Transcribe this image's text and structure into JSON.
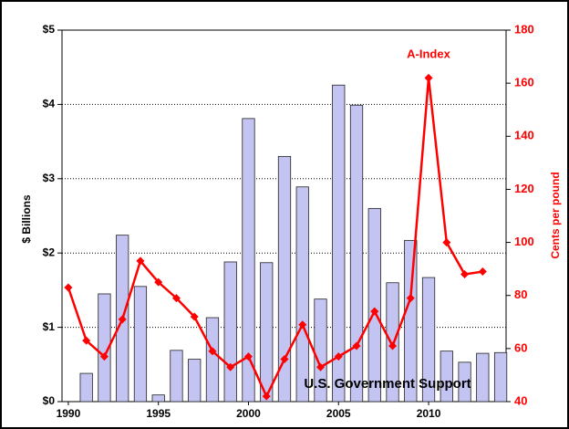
{
  "chart_data": {
    "type": "bar_line",
    "x": [
      1990,
      1991,
      1992,
      1993,
      1994,
      1995,
      1996,
      1997,
      1998,
      1999,
      2000,
      2001,
      2002,
      2003,
      2004,
      2005,
      2006,
      2007,
      2008,
      2009,
      2010,
      2011,
      2012,
      2013,
      2014
    ],
    "series": [
      {
        "name": "U.S. Government Support",
        "type": "bar",
        "color": "#c4c4f2",
        "values": [
          0,
          0.38,
          1.45,
          2.24,
          1.55,
          0.09,
          0.69,
          0.57,
          1.13,
          1.88,
          3.81,
          1.87,
          3.3,
          2.89,
          1.38,
          4.26,
          3.99,
          2.6,
          1.6,
          2.17,
          1.67,
          0.68,
          0.53,
          0.65,
          0.66
        ]
      },
      {
        "name": "A-Index",
        "type": "line",
        "axis": "y2",
        "color": "#ff0000",
        "values": [
          83,
          63,
          57,
          71,
          93,
          85,
          79,
          72,
          59,
          53,
          57,
          42,
          56,
          69,
          53,
          57,
          61,
          74,
          61,
          79,
          162,
          100,
          88,
          89,
          null
        ]
      }
    ],
    "y_label": "$ Billions",
    "y2_label": "Cents per pound",
    "xlim": [
      1989.65,
      2014.3
    ],
    "xticks": [
      1990,
      1995,
      2000,
      2005,
      2010
    ],
    "ylim": [
      0,
      5
    ],
    "yticks": [
      {
        "value": 0,
        "label": "$0"
      },
      {
        "value": 1,
        "label": "$1"
      },
      {
        "value": 2,
        "label": "$2"
      },
      {
        "value": 3,
        "label": "$3"
      },
      {
        "value": 4,
        "label": "$4"
      },
      {
        "value": 5,
        "label": "$5"
      }
    ],
    "y2lim": [
      40,
      180
    ],
    "y2ticks": [
      40,
      60,
      80,
      100,
      120,
      140,
      160,
      180
    ],
    "grid": true
  }
}
